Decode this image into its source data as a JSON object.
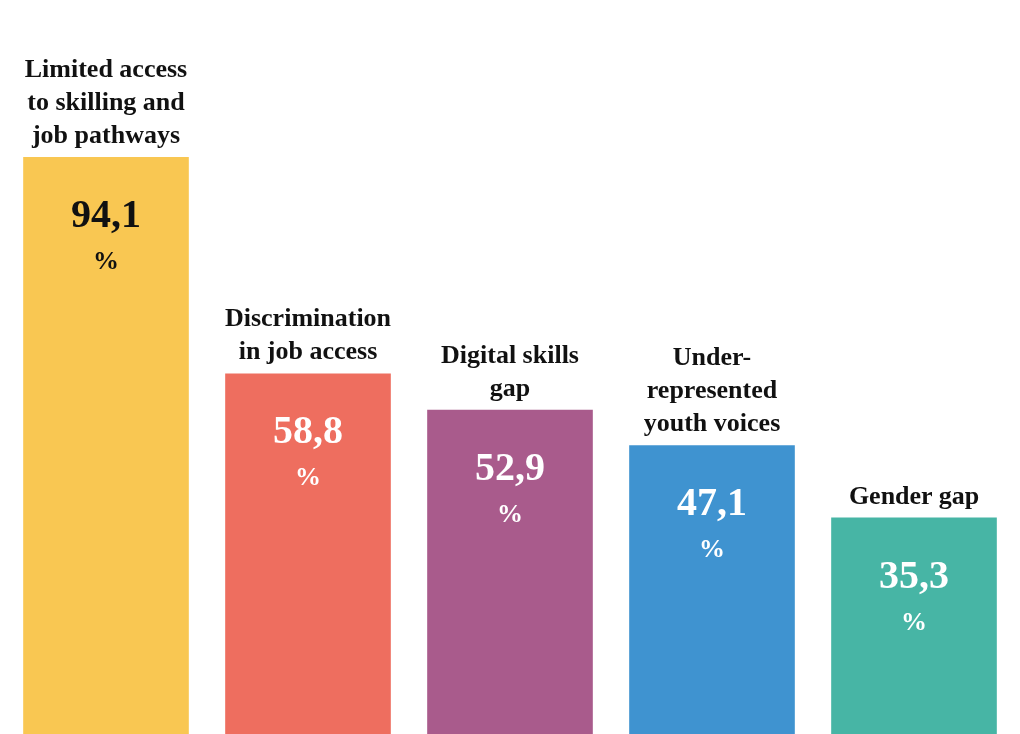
{
  "chart_data": {
    "type": "bar",
    "categories": [
      "Limited access to skilling and job pathways",
      "Discrimination in job access",
      "Digital skills gap",
      "Under-represented youth voices",
      "Gender gap"
    ],
    "values": [
      94.1,
      58.8,
      52.9,
      47.1,
      35.3
    ],
    "colors": [
      "#f9c752",
      "#ee6e5f",
      "#a95b8c",
      "#3f93d0",
      "#47b5a5"
    ],
    "value_labels": [
      "94,1 %",
      "58,8 %",
      "52,9 %",
      "47,1 %",
      "35,3 %"
    ],
    "legend": false
  }
}
